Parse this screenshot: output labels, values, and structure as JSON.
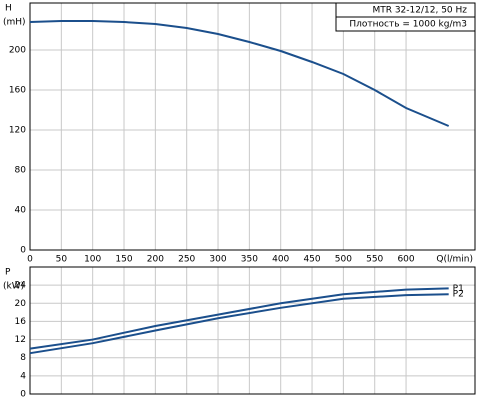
{
  "chart_data": [
    {
      "type": "line",
      "y_label": "H",
      "y_unit": "(mH)",
      "x_label": "Q(l/min)",
      "annotations": [
        "MTR 32-12/12, 50 Hz",
        "Плотность = 1000 kg/m3"
      ],
      "x": [
        0,
        50,
        100,
        150,
        200,
        250,
        300,
        350,
        400,
        450,
        500,
        550,
        600,
        668
      ],
      "series": [
        {
          "color": "#1b4f8c",
          "values": [
            228,
            229,
            229,
            228,
            226,
            222,
            216,
            208,
            199,
            188,
            176,
            160,
            142,
            124
          ]
        }
      ],
      "xlim": [
        0,
        710
      ],
      "ylim": [
        0,
        247
      ],
      "xticks": [
        0,
        50,
        100,
        150,
        200,
        250,
        300,
        350,
        400,
        450,
        500,
        550,
        600
      ],
      "yticks": [
        0,
        40,
        80,
        120,
        160,
        200
      ],
      "grid": true
    },
    {
      "type": "line",
      "y_label": "P",
      "y_unit": "(kW)",
      "x": [
        0,
        100,
        200,
        300,
        400,
        500,
        600,
        668
      ],
      "series": [
        {
          "name": "P1",
          "color": "#1b4f8c",
          "values": [
            10,
            12,
            15,
            17.5,
            20,
            22,
            23,
            23.3
          ]
        },
        {
          "name": "P2",
          "color": "#1b4f8c",
          "values": [
            9,
            11.2,
            14,
            16.7,
            19,
            21,
            21.8,
            22
          ]
        }
      ],
      "xlim": [
        0,
        710
      ],
      "ylim": [
        0,
        28
      ],
      "yticks": [
        0,
        4,
        8,
        12,
        16,
        20,
        24
      ],
      "grid": true
    }
  ]
}
